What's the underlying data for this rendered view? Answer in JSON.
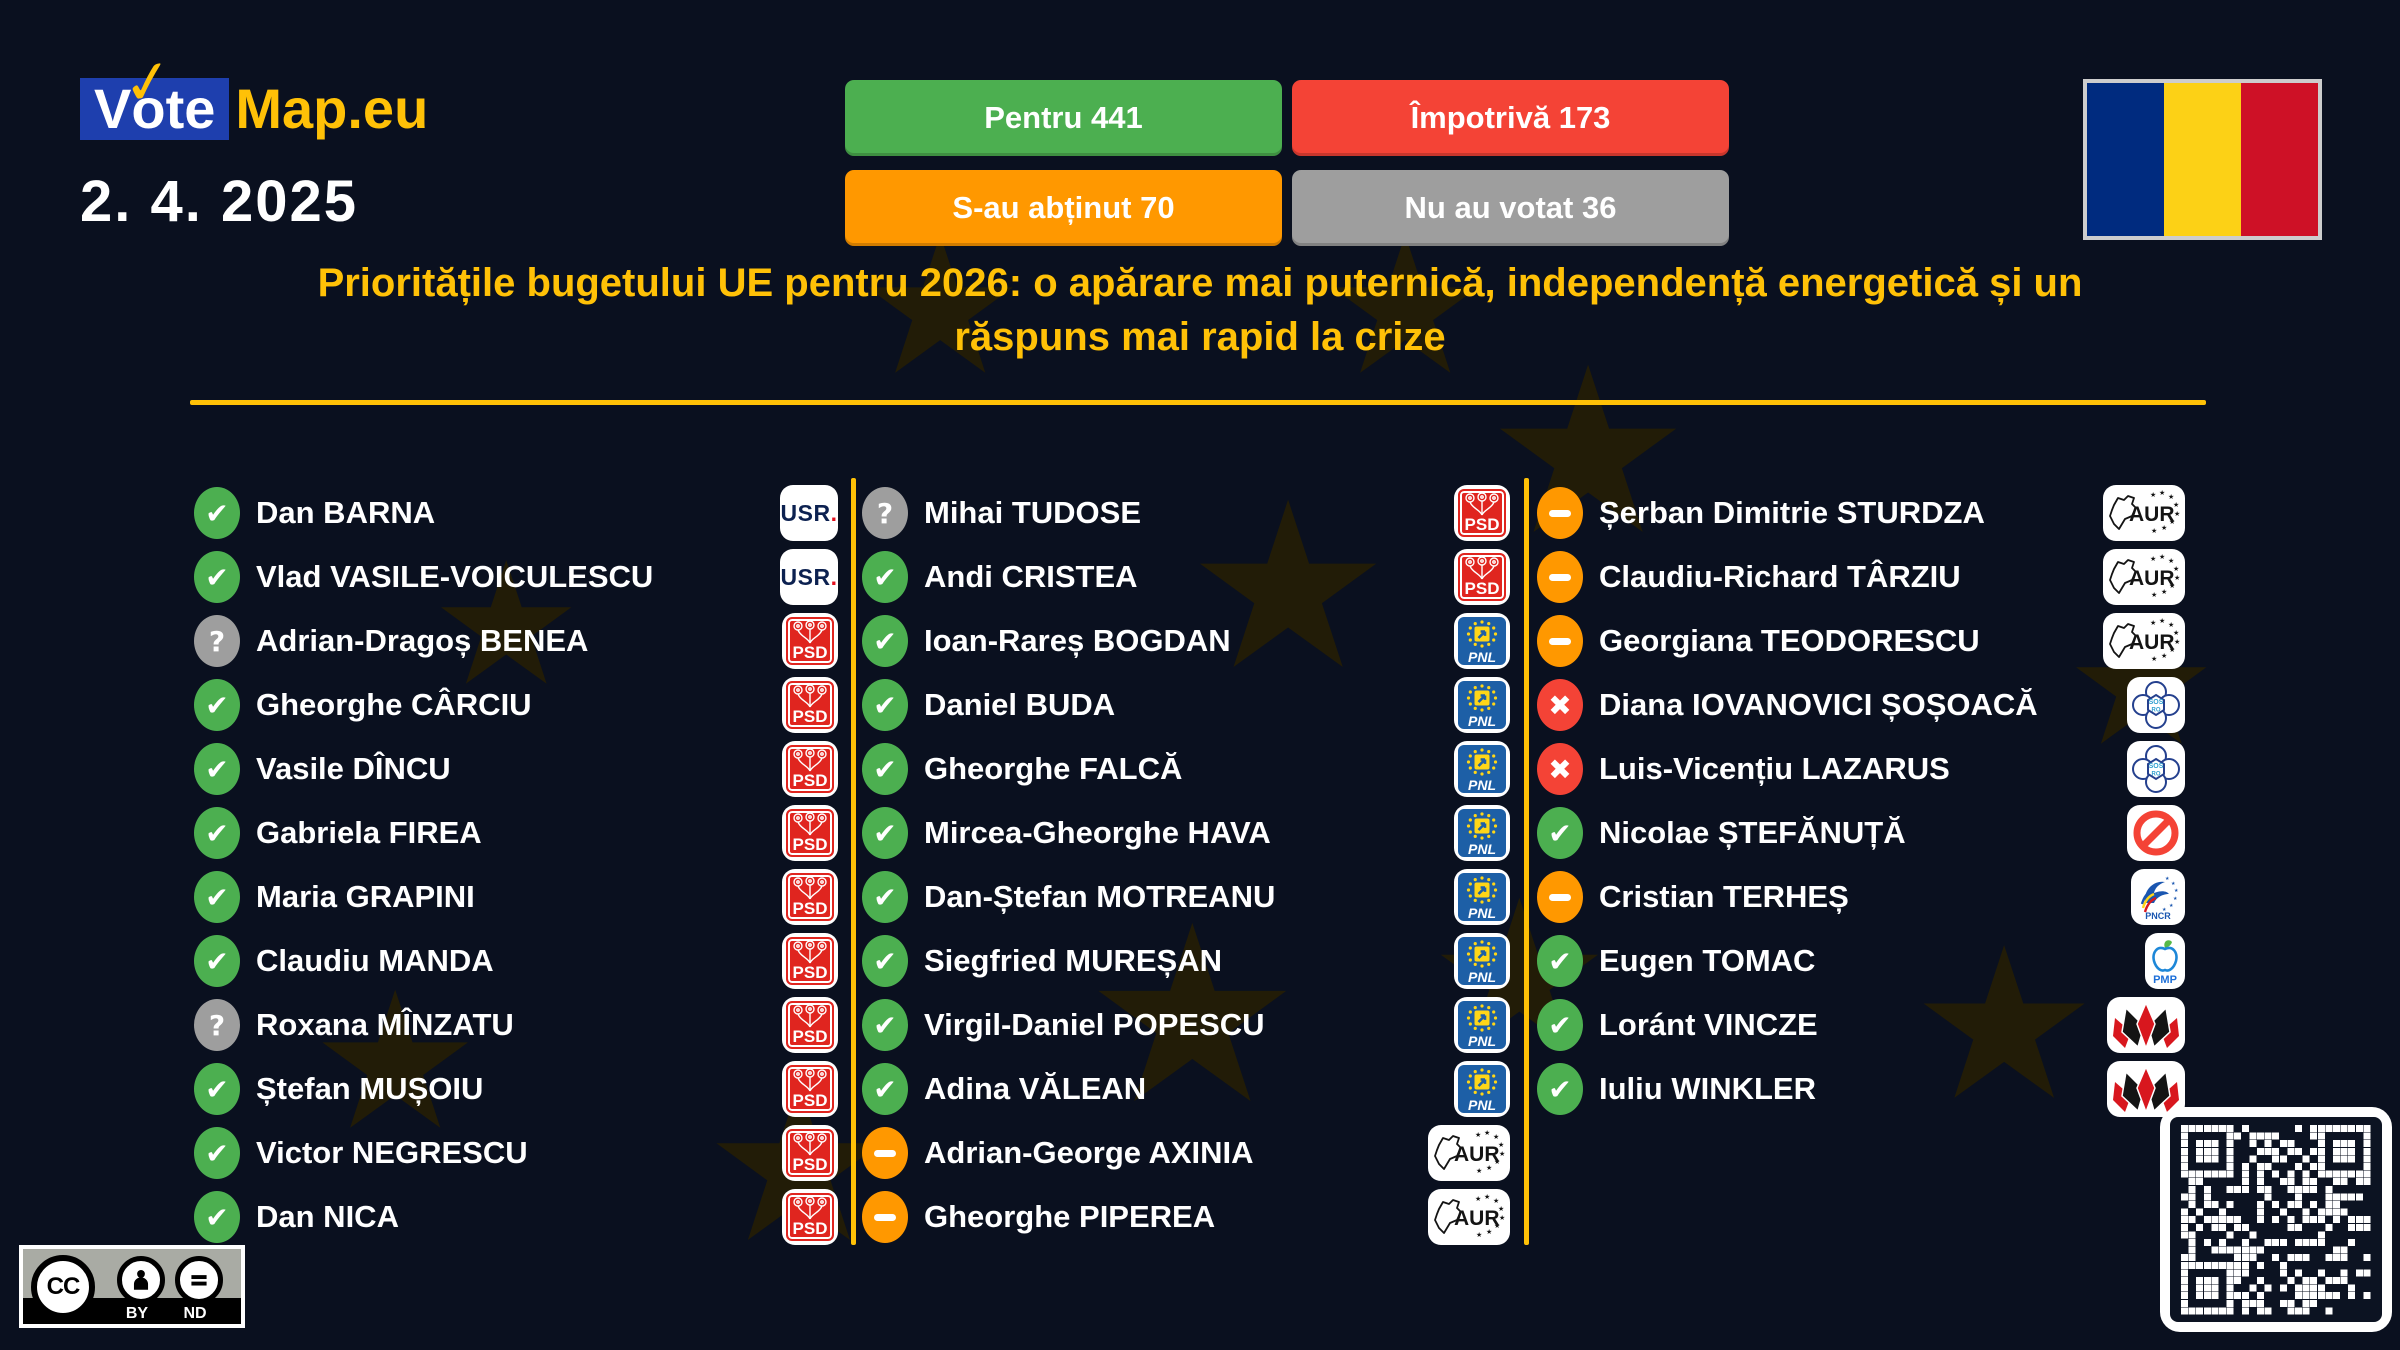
{
  "brand": {
    "vote_text": "Vote",
    "map_text": "Map.eu"
  },
  "date": "2. 4. 2025",
  "summary_buttons": [
    {
      "id": "for",
      "label": "Pentru 441",
      "color": "#4caf50"
    },
    {
      "id": "against",
      "label": "Împotrivă 173",
      "color": "#f44336"
    },
    {
      "id": "abstain",
      "label": "S-au abținut 70",
      "color": "#ff9800"
    },
    {
      "id": "novote",
      "label": "Nu au votat 36",
      "color": "#9e9e9e"
    }
  ],
  "title": {
    "line1": "Prioritățile bugetului UE pentru 2026: o apărare mai puternică, independență energetică și un",
    "line2": "răspuns mai rapid la crize"
  },
  "vote_styles": {
    "for": {
      "glyph": "✔",
      "color": "#4caf50",
      "name": "voted-for"
    },
    "against": {
      "glyph": "✖",
      "color": "#f44336",
      "name": "voted-against"
    },
    "abstain": {
      "glyph": "−",
      "color": "#ff9800",
      "name": "abstained"
    },
    "absent": {
      "glyph": "?",
      "color": "#9e9e9e",
      "name": "did-not-vote"
    }
  },
  "party_labels": {
    "USR": "USR.",
    "PSD": "PSD",
    "PNL": "PNL",
    "AUR": "AUR",
    "SOS": "SOS RO",
    "PNCR": "PNCR",
    "PMP": "PMP",
    "UDMR": "",
    "BAN": ""
  },
  "columns": [
    [
      {
        "name": "Dan BARNA",
        "vote": "for",
        "party": "USR"
      },
      {
        "name": "Vlad VASILE-VOICULESCU",
        "vote": "for",
        "party": "USR"
      },
      {
        "name": "Adrian-Dragoș BENEA",
        "vote": "absent",
        "party": "PSD"
      },
      {
        "name": "Gheorghe CÂRCIU",
        "vote": "for",
        "party": "PSD"
      },
      {
        "name": "Vasile DÎNCU",
        "vote": "for",
        "party": "PSD"
      },
      {
        "name": "Gabriela FIREA",
        "vote": "for",
        "party": "PSD"
      },
      {
        "name": "Maria GRAPINI",
        "vote": "for",
        "party": "PSD"
      },
      {
        "name": "Claudiu MANDA",
        "vote": "for",
        "party": "PSD"
      },
      {
        "name": "Roxana MÎNZATU",
        "vote": "absent",
        "party": "PSD"
      },
      {
        "name": "Ștefan MUȘOIU",
        "vote": "for",
        "party": "PSD"
      },
      {
        "name": "Victor NEGRESCU",
        "vote": "for",
        "party": "PSD"
      },
      {
        "name": "Dan NICA",
        "vote": "for",
        "party": "PSD"
      }
    ],
    [
      {
        "name": "Mihai TUDOSE",
        "vote": "absent",
        "party": "PSD"
      },
      {
        "name": "Andi CRISTEA",
        "vote": "for",
        "party": "PSD"
      },
      {
        "name": "Ioan-Rareș BOGDAN",
        "vote": "for",
        "party": "PNL"
      },
      {
        "name": "Daniel BUDA",
        "vote": "for",
        "party": "PNL"
      },
      {
        "name": "Gheorghe FALCĂ",
        "vote": "for",
        "party": "PNL"
      },
      {
        "name": "Mircea-Gheorghe HAVA",
        "vote": "for",
        "party": "PNL"
      },
      {
        "name": "Dan-Ștefan MOTREANU",
        "vote": "for",
        "party": "PNL"
      },
      {
        "name": "Siegfried MUREȘAN",
        "vote": "for",
        "party": "PNL"
      },
      {
        "name": "Virgil-Daniel POPESCU",
        "vote": "for",
        "party": "PNL"
      },
      {
        "name": "Adina VĂLEAN",
        "vote": "for",
        "party": "PNL"
      },
      {
        "name": "Adrian-George AXINIA",
        "vote": "abstain",
        "party": "AUR"
      },
      {
        "name": "Gheorghe PIPEREA",
        "vote": "abstain",
        "party": "AUR"
      }
    ],
    [
      {
        "name": "Șerban Dimitrie STURDZA",
        "vote": "abstain",
        "party": "AUR"
      },
      {
        "name": "Claudiu-Richard TÂRZIU",
        "vote": "abstain",
        "party": "AUR"
      },
      {
        "name": "Georgiana TEODORESCU",
        "vote": "abstain",
        "party": "AUR"
      },
      {
        "name": "Diana IOVANOVICI ȘOȘOACĂ",
        "vote": "against",
        "party": "SOS"
      },
      {
        "name": "Luis-Vicențiu LAZARUS",
        "vote": "against",
        "party": "SOS"
      },
      {
        "name": "Nicolae ȘTEFĂNUȚĂ",
        "vote": "for",
        "party": "BAN"
      },
      {
        "name": "Cristian TERHEȘ",
        "vote": "abstain",
        "party": "PNCR"
      },
      {
        "name": "Eugen TOMAC",
        "vote": "for",
        "party": "PMP"
      },
      {
        "name": "Loránt VINCZE",
        "vote": "for",
        "party": "UDMR"
      },
      {
        "name": "Iuliu WINKLER",
        "vote": "for",
        "party": "UDMR"
      }
    ]
  ],
  "license": {
    "by": "BY",
    "nd": "ND",
    "cc": "CC"
  },
  "colors": {
    "background": "#0a101f",
    "accent_yellow": "#ffc107",
    "brand_blue": "#1e3fae",
    "flag": [
      "#002b7f",
      "#fcd116",
      "#ce1126"
    ]
  }
}
